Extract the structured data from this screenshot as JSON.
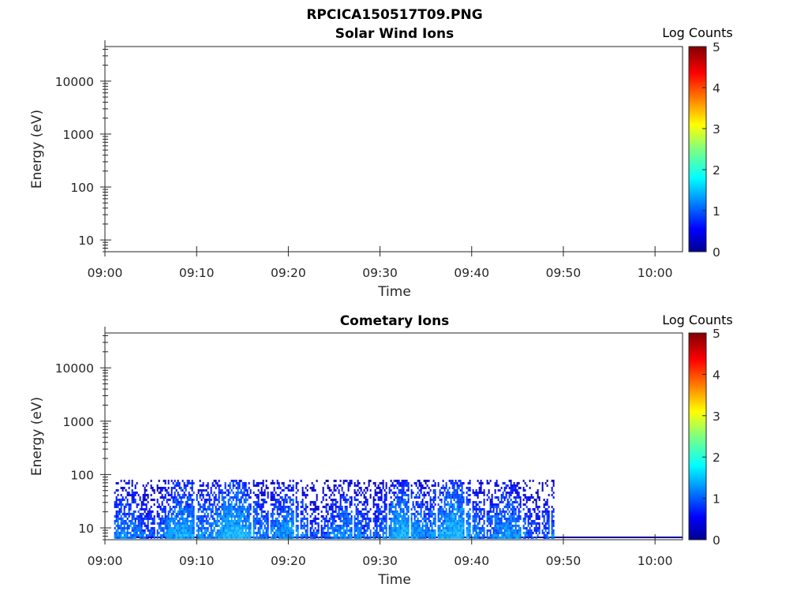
{
  "figure_title": "RPCICA150517T09.PNG",
  "chart_data": [
    {
      "type": "heatmap",
      "title": "Solar Wind Ions",
      "xlabel": "Time",
      "ylabel": "Energy (eV)",
      "x_tick_labels": [
        "09:00",
        "09:10",
        "09:20",
        "09:30",
        "09:40",
        "09:50",
        "10:00"
      ],
      "xlim": [
        "09:00",
        "10:03"
      ],
      "y_scale": "log",
      "y_tick_values": [
        10,
        100,
        1000,
        10000
      ],
      "y_tick_labels": [
        "10",
        "100",
        "1000",
        "10000"
      ],
      "ylim": [
        6,
        45000
      ],
      "colorbar": {
        "label": "Log Counts",
        "range": [
          0,
          5
        ],
        "tick_labels": [
          "0",
          "1",
          "2",
          "3",
          "4",
          "5"
        ],
        "colormap": "jet"
      },
      "data_present": false,
      "description_of_data": []
    },
    {
      "type": "heatmap",
      "title": "Cometary Ions",
      "xlabel": "Time",
      "ylabel": "Energy (eV)",
      "x_tick_labels": [
        "09:00",
        "09:10",
        "09:20",
        "09:30",
        "09:40",
        "09:50",
        "10:00"
      ],
      "xlim": [
        "09:00",
        "10:03"
      ],
      "y_scale": "log",
      "y_tick_values": [
        10,
        100,
        1000,
        10000
      ],
      "y_tick_labels": [
        "10",
        "100",
        "1000",
        "10000"
      ],
      "ylim": [
        6,
        45000
      ],
      "colorbar": {
        "label": "Log Counts",
        "range": [
          0,
          5
        ],
        "tick_labels": [
          "0",
          "1",
          "2",
          "3",
          "4",
          "5"
        ],
        "colormap": "jet"
      },
      "data_present": true,
      "data_time_range": [
        "09:01",
        "09:49"
      ],
      "data_energy_range_eV": [
        6,
        80
      ],
      "fill_band_end": "10:03",
      "value_range_log_counts": [
        0,
        1.5
      ]
    }
  ]
}
